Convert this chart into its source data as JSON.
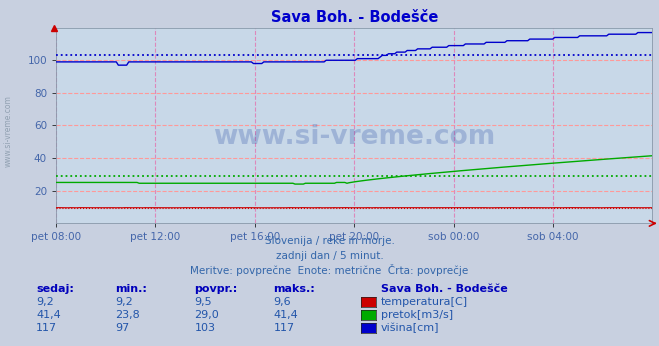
{
  "title": "Sava Boh. - Bodešče",
  "title_color": "#0000cc",
  "bg_color": "#c8d0e0",
  "plot_bg_color": "#c8d8e8",
  "grid_color_h": "#ff9999",
  "grid_color_v": "#dd88cc",
  "ylim": [
    0,
    120
  ],
  "yticks": [
    20,
    40,
    60,
    80,
    100
  ],
  "xlabel_color": "#4466aa",
  "xtick_labels": [
    "pet 08:00",
    "pet 12:00",
    "pet 16:00",
    "pet 20:00",
    "sob 00:00",
    "sob 04:00"
  ],
  "n_points": 288,
  "temp_color": "#cc0000",
  "pretok_color": "#00aa00",
  "visina_color": "#0000cc",
  "temp_avg": 9.5,
  "temp_min": 9.2,
  "temp_max": 9.6,
  "temp_sedaj": "9,2",
  "temp_min_s": "9,2",
  "temp_avg_s": "9,5",
  "temp_max_s": "9,6",
  "pretok_avg": 29.0,
  "pretok_min": 23.8,
  "pretok_max": 41.4,
  "pretok_sedaj": "41,4",
  "pretok_min_s": "23,8",
  "pretok_avg_s": "29,0",
  "pretok_max_s": "41,4",
  "visina_avg": 103,
  "visina_min": 97,
  "visina_max": 117,
  "visina_sedaj": "117",
  "visina_min_s": "97",
  "visina_avg_s": "103",
  "visina_max_s": "117",
  "watermark": "www.si-vreme.com",
  "watermark_color": "#3355aa",
  "footer_line1": "Slovenija / reke in morje.",
  "footer_line2": "zadnji dan / 5 minut.",
  "footer_line3": "Meritve: povprečne  Enote: metrične  Črta: povprečje",
  "footer_color": "#3366aa",
  "table_header_color": "#0000bb",
  "table_data_color": "#2255aa",
  "station_label": "Sava Boh. - Bodešče",
  "legend_temp": "temperatura[C]",
  "legend_pretok": "pretok[m3/s]",
  "legend_visina": "višina[cm]",
  "left_label": "www.si-vreme.com"
}
